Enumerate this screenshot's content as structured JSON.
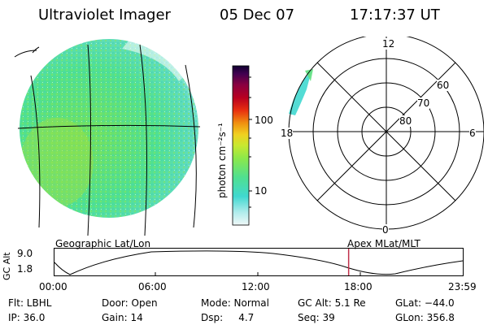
{
  "header": {
    "title": "Ultraviolet Imager",
    "date": "05 Dec 07",
    "time": "17:17:37 UT"
  },
  "colorbar": {
    "label": "photon cm⁻²s⁻¹",
    "ticks": [
      "100",
      "10"
    ],
    "colors": [
      "#f0f8f8",
      "#b0ecec",
      "#40d8d0",
      "#50e090",
      "#8ce84a",
      "#c8e830",
      "#f0d020",
      "#f09010",
      "#e83010",
      "#b80020",
      "#8a0040",
      "#400050",
      "#100030"
    ]
  },
  "labels": {
    "geo": "Geographic Lat/Lon",
    "apex": "Apex MLat/MLT"
  },
  "polar": {
    "mlt": [
      "12",
      "18",
      "6",
      "0"
    ],
    "mlat": [
      "60",
      "70",
      "80"
    ]
  },
  "altplot": {
    "ylabel": "GC Alt",
    "yticks": [
      "9.0",
      "1.8"
    ],
    "xticks": [
      "00:00",
      "06:00",
      "12:00",
      "18:00",
      "23:59"
    ],
    "marker_hours": 17.29
  },
  "footer": {
    "row1": [
      "Flt: LBHL",
      "Door: Open",
      "Mode: Normal",
      "GC Alt: 5.1 Re",
      "GLat: −44.0"
    ],
    "row2": [
      "IP: 36.0",
      "Gain: 14",
      "Dsp:     4.7",
      "Seq: 39",
      "GLon: 356.8"
    ]
  },
  "colors": {
    "aurora": "#40d8d0",
    "disk_main": "#50e090",
    "marker": "#c0304a"
  }
}
